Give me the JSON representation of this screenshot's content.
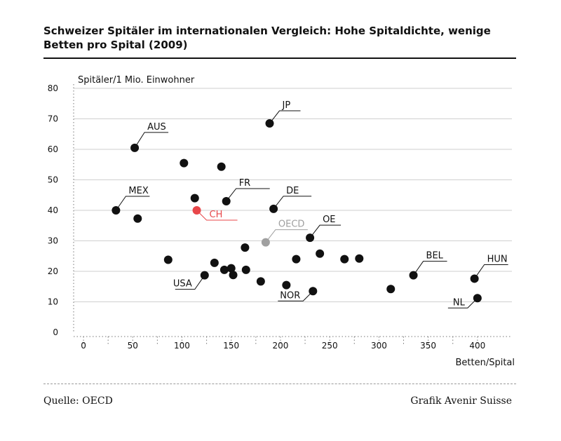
{
  "header": {
    "title": "Schweizer Spitäler im internationalen Vergleich: Hohe Spitaldichte, wenige Betten pro Spital (2009)"
  },
  "footer": {
    "source": "Quelle: OECD",
    "credit": "Grafik Avenir Suisse"
  },
  "colors": {
    "point": "#111111",
    "highlight": "#e8474a",
    "oecd": "#a0a0a0",
    "grid": "#cfcfcf"
  },
  "chart_data": {
    "type": "scatter",
    "title": "Schweizer Spitäler im internationalen Vergleich: Hohe Spitaldichte, wenige Betten pro Spital (2009)",
    "xlabel": "Betten/Spital",
    "ylabel": "Spitäler/1 Mio. Einwohner",
    "xlim": [
      -10,
      435
    ],
    "ylim": [
      0,
      80
    ],
    "xticks": [
      "0",
      "50",
      "100",
      "150",
      "200",
      "250",
      "300",
      "350",
      "400"
    ],
    "yticks": [
      "0",
      "10",
      "20",
      "30",
      "40",
      "50",
      "60",
      "70",
      "80"
    ],
    "grid": true,
    "points": [
      {
        "x": 189,
        "y": 68.5,
        "label": "JP",
        "kind": "normal"
      },
      {
        "x": 52,
        "y": 60.5,
        "label": "AUS",
        "kind": "normal"
      },
      {
        "x": 102,
        "y": 55.5,
        "label": "",
        "kind": "normal"
      },
      {
        "x": 140,
        "y": 54.3,
        "label": "",
        "kind": "normal"
      },
      {
        "x": 113,
        "y": 44,
        "label": "",
        "kind": "normal"
      },
      {
        "x": 145,
        "y": 43,
        "label": "FR",
        "kind": "normal"
      },
      {
        "x": 193,
        "y": 40.5,
        "label": "DE",
        "kind": "normal"
      },
      {
        "x": 33,
        "y": 40,
        "label": "MEX",
        "kind": "normal"
      },
      {
        "x": 115,
        "y": 40,
        "label": "CH",
        "kind": "highlight"
      },
      {
        "x": 55,
        "y": 37.3,
        "label": "",
        "kind": "normal"
      },
      {
        "x": 230,
        "y": 31,
        "label": "OE",
        "kind": "normal"
      },
      {
        "x": 185,
        "y": 29.5,
        "label": "OECD",
        "kind": "oecd"
      },
      {
        "x": 164,
        "y": 27.8,
        "label": "",
        "kind": "normal"
      },
      {
        "x": 240,
        "y": 25.8,
        "label": "",
        "kind": "normal"
      },
      {
        "x": 86,
        "y": 23.8,
        "label": "",
        "kind": "normal"
      },
      {
        "x": 216,
        "y": 24,
        "label": "",
        "kind": "normal"
      },
      {
        "x": 265,
        "y": 24,
        "label": "",
        "kind": "normal"
      },
      {
        "x": 280,
        "y": 24.2,
        "label": "",
        "kind": "normal"
      },
      {
        "x": 133,
        "y": 22.8,
        "label": "",
        "kind": "normal"
      },
      {
        "x": 143,
        "y": 20.5,
        "label": "",
        "kind": "normal"
      },
      {
        "x": 150,
        "y": 21,
        "label": "",
        "kind": "normal"
      },
      {
        "x": 165,
        "y": 20.5,
        "label": "",
        "kind": "normal"
      },
      {
        "x": 123,
        "y": 18.7,
        "label": "USA",
        "kind": "normal"
      },
      {
        "x": 152,
        "y": 18.8,
        "label": "",
        "kind": "normal"
      },
      {
        "x": 335,
        "y": 18.7,
        "label": "BEL",
        "kind": "normal"
      },
      {
        "x": 397,
        "y": 17.6,
        "label": "HUN",
        "kind": "normal"
      },
      {
        "x": 180,
        "y": 16.7,
        "label": "",
        "kind": "normal"
      },
      {
        "x": 206,
        "y": 15.5,
        "label": "",
        "kind": "normal"
      },
      {
        "x": 312,
        "y": 14.2,
        "label": "",
        "kind": "normal"
      },
      {
        "x": 233,
        "y": 13.5,
        "label": "NOR",
        "kind": "normal"
      },
      {
        "x": 400,
        "y": 11.2,
        "label": "NL",
        "kind": "normal"
      }
    ]
  }
}
